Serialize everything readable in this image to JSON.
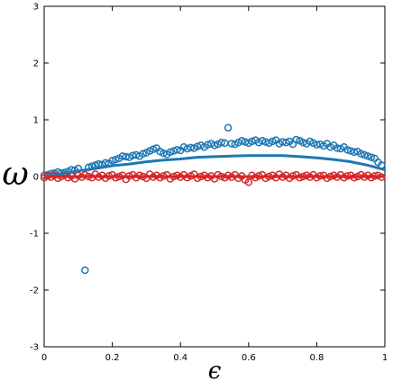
{
  "chart_data": {
    "type": "scatter",
    "xlabel": "ϵ",
    "ylabel": "ω",
    "xlim": [
      0,
      1
    ],
    "ylim": [
      -3,
      3
    ],
    "x_ticks": [
      "0",
      "0.2",
      "0.4",
      "0.6",
      "0.8",
      "1"
    ],
    "y_ticks": [
      "3",
      "2",
      "1",
      "0",
      "-1",
      "-2",
      "-3"
    ],
    "x_tick_values": [
      0,
      0.2,
      0.4,
      0.6,
      0.8,
      1
    ],
    "y_tick_values": [
      3,
      2,
      1,
      0,
      -1,
      -2,
      -3
    ],
    "grid": false,
    "colors": {
      "blue": "#1f77b4",
      "red": "#d62728"
    },
    "series": [
      {
        "kind": "scatter",
        "color": "blue",
        "points": [
          [
            0.0,
            0.02
          ],
          [
            0.01,
            0.03
          ],
          [
            0.02,
            0.05
          ],
          [
            0.03,
            0.06
          ],
          [
            0.04,
            0.08
          ],
          [
            0.05,
            0.06
          ],
          [
            0.06,
            0.07
          ],
          [
            0.07,
            0.09
          ],
          [
            0.08,
            0.12
          ],
          [
            0.09,
            0.11
          ],
          [
            0.1,
            0.14
          ],
          [
            0.12,
            -1.65
          ],
          [
            0.13,
            0.16
          ],
          [
            0.14,
            0.18
          ],
          [
            0.15,
            0.2
          ],
          [
            0.16,
            0.22
          ],
          [
            0.17,
            0.21
          ],
          [
            0.18,
            0.24
          ],
          [
            0.19,
            0.23
          ],
          [
            0.2,
            0.28
          ],
          [
            0.21,
            0.3
          ],
          [
            0.22,
            0.32
          ],
          [
            0.23,
            0.36
          ],
          [
            0.24,
            0.35
          ],
          [
            0.25,
            0.34
          ],
          [
            0.26,
            0.37
          ],
          [
            0.27,
            0.38
          ],
          [
            0.28,
            0.36
          ],
          [
            0.29,
            0.4
          ],
          [
            0.3,
            0.42
          ],
          [
            0.31,
            0.45
          ],
          [
            0.32,
            0.48
          ],
          [
            0.33,
            0.5
          ],
          [
            0.34,
            0.44
          ],
          [
            0.35,
            0.41
          ],
          [
            0.36,
            0.39
          ],
          [
            0.37,
            0.43
          ],
          [
            0.38,
            0.45
          ],
          [
            0.39,
            0.47
          ],
          [
            0.4,
            0.46
          ],
          [
            0.41,
            0.52
          ],
          [
            0.42,
            0.49
          ],
          [
            0.43,
            0.51
          ],
          [
            0.44,
            0.5
          ],
          [
            0.45,
            0.53
          ],
          [
            0.46,
            0.55
          ],
          [
            0.47,
            0.52
          ],
          [
            0.48,
            0.56
          ],
          [
            0.49,
            0.58
          ],
          [
            0.5,
            0.55
          ],
          [
            0.51,
            0.57
          ],
          [
            0.52,
            0.6
          ],
          [
            0.53,
            0.59
          ],
          [
            0.54,
            0.86
          ],
          [
            0.55,
            0.58
          ],
          [
            0.56,
            0.57
          ],
          [
            0.57,
            0.6
          ],
          [
            0.58,
            0.63
          ],
          [
            0.59,
            0.61
          ],
          [
            0.6,
            0.59
          ],
          [
            0.61,
            0.62
          ],
          [
            0.62,
            0.64
          ],
          [
            0.63,
            0.6
          ],
          [
            0.64,
            0.63
          ],
          [
            0.65,
            0.61
          ],
          [
            0.66,
            0.59
          ],
          [
            0.67,
            0.62
          ],
          [
            0.68,
            0.64
          ],
          [
            0.69,
            0.58
          ],
          [
            0.7,
            0.61
          ],
          [
            0.71,
            0.6
          ],
          [
            0.72,
            0.62
          ],
          [
            0.73,
            0.57
          ],
          [
            0.74,
            0.65
          ],
          [
            0.75,
            0.63
          ],
          [
            0.76,
            0.6
          ],
          [
            0.77,
            0.58
          ],
          [
            0.78,
            0.62
          ],
          [
            0.79,
            0.59
          ],
          [
            0.8,
            0.56
          ],
          [
            0.81,
            0.57
          ],
          [
            0.82,
            0.54
          ],
          [
            0.83,
            0.58
          ],
          [
            0.84,
            0.52
          ],
          [
            0.85,
            0.55
          ],
          [
            0.86,
            0.5
          ],
          [
            0.87,
            0.49
          ],
          [
            0.88,
            0.52
          ],
          [
            0.89,
            0.47
          ],
          [
            0.9,
            0.45
          ],
          [
            0.91,
            0.43
          ],
          [
            0.92,
            0.44
          ],
          [
            0.93,
            0.4
          ],
          [
            0.94,
            0.38
          ],
          [
            0.95,
            0.36
          ],
          [
            0.96,
            0.34
          ],
          [
            0.97,
            0.32
          ],
          [
            0.98,
            0.25
          ],
          [
            0.99,
            0.2
          ]
        ]
      },
      {
        "kind": "scatter",
        "color": "red",
        "points": [
          [
            0.0,
            -0.02
          ],
          [
            0.01,
            0.01
          ],
          [
            0.02,
            -0.01
          ],
          [
            0.03,
            0.02
          ],
          [
            0.04,
            -0.03
          ],
          [
            0.05,
            0.0
          ],
          [
            0.06,
            0.03
          ],
          [
            0.07,
            -0.02
          ],
          [
            0.08,
            0.01
          ],
          [
            0.09,
            -0.04
          ],
          [
            0.1,
            0.02
          ],
          [
            0.11,
            -0.01
          ],
          [
            0.12,
            0.03
          ],
          [
            0.13,
            0.0
          ],
          [
            0.14,
            -0.02
          ],
          [
            0.15,
            0.04
          ],
          [
            0.16,
            -0.01
          ],
          [
            0.17,
            0.02
          ],
          [
            0.18,
            -0.03
          ],
          [
            0.19,
            0.01
          ],
          [
            0.2,
            0.03
          ],
          [
            0.21,
            -0.02
          ],
          [
            0.22,
            0.0
          ],
          [
            0.23,
            0.02
          ],
          [
            0.24,
            -0.05
          ],
          [
            0.25,
            0.01
          ],
          [
            0.26,
            0.03
          ],
          [
            0.27,
            -0.02
          ],
          [
            0.28,
            0.02
          ],
          [
            0.29,
            0.0
          ],
          [
            0.3,
            -0.03
          ],
          [
            0.31,
            0.04
          ],
          [
            0.32,
            -0.01
          ],
          [
            0.33,
            0.02
          ],
          [
            0.34,
            -0.02
          ],
          [
            0.35,
            0.01
          ],
          [
            0.36,
            0.03
          ],
          [
            0.37,
            -0.04
          ],
          [
            0.38,
            0.0
          ],
          [
            0.39,
            0.02
          ],
          [
            0.4,
            -0.01
          ],
          [
            0.41,
            0.03
          ],
          [
            0.42,
            -0.02
          ],
          [
            0.43,
            0.01
          ],
          [
            0.44,
            0.04
          ],
          [
            0.45,
            -0.03
          ],
          [
            0.46,
            0.0
          ],
          [
            0.47,
            0.02
          ],
          [
            0.48,
            -0.02
          ],
          [
            0.49,
            0.01
          ],
          [
            0.5,
            -0.04
          ],
          [
            0.51,
            0.03
          ],
          [
            0.52,
            0.0
          ],
          [
            0.53,
            -0.02
          ],
          [
            0.54,
            0.02
          ],
          [
            0.55,
            -0.01
          ],
          [
            0.56,
            0.03
          ],
          [
            0.57,
            -0.03
          ],
          [
            0.58,
            0.01
          ],
          [
            0.59,
            -0.06
          ],
          [
            0.6,
            -0.1
          ],
          [
            0.61,
            0.02
          ],
          [
            0.62,
            -0.02
          ],
          [
            0.63,
            0.01
          ],
          [
            0.64,
            0.03
          ],
          [
            0.65,
            -0.03
          ],
          [
            0.66,
            0.0
          ],
          [
            0.67,
            0.02
          ],
          [
            0.68,
            -0.02
          ],
          [
            0.69,
            0.04
          ],
          [
            0.7,
            -0.01
          ],
          [
            0.71,
            0.02
          ],
          [
            0.72,
            -0.03
          ],
          [
            0.73,
            0.01
          ],
          [
            0.74,
            0.03
          ],
          [
            0.75,
            -0.02
          ],
          [
            0.76,
            0.0
          ],
          [
            0.77,
            0.02
          ],
          [
            0.78,
            -0.01
          ],
          [
            0.79,
            0.03
          ],
          [
            0.8,
            -0.02
          ],
          [
            0.81,
            0.01
          ],
          [
            0.82,
            0.02
          ],
          [
            0.83,
            -0.03
          ],
          [
            0.84,
            0.0
          ],
          [
            0.85,
            0.02
          ],
          [
            0.86,
            -0.01
          ],
          [
            0.87,
            0.03
          ],
          [
            0.88,
            -0.02
          ],
          [
            0.89,
            0.01
          ],
          [
            0.9,
            0.02
          ],
          [
            0.91,
            -0.02
          ],
          [
            0.92,
            0.0
          ],
          [
            0.93,
            0.03
          ],
          [
            0.94,
            -0.01
          ],
          [
            0.95,
            0.02
          ],
          [
            0.96,
            -0.02
          ],
          [
            0.97,
            0.01
          ],
          [
            0.98,
            0.02
          ],
          [
            0.99,
            -0.01
          ]
        ]
      },
      {
        "kind": "line",
        "color": "blue",
        "points": [
          [
            0.0,
            0.0
          ],
          [
            0.05,
            0.05
          ],
          [
            0.1,
            0.1
          ],
          [
            0.15,
            0.14
          ],
          [
            0.2,
            0.19
          ],
          [
            0.25,
            0.22
          ],
          [
            0.3,
            0.26
          ],
          [
            0.35,
            0.29
          ],
          [
            0.4,
            0.31
          ],
          [
            0.45,
            0.34
          ],
          [
            0.5,
            0.35
          ],
          [
            0.55,
            0.36
          ],
          [
            0.6,
            0.37
          ],
          [
            0.65,
            0.37
          ],
          [
            0.7,
            0.37
          ],
          [
            0.75,
            0.35
          ],
          [
            0.8,
            0.33
          ],
          [
            0.85,
            0.3
          ],
          [
            0.9,
            0.26
          ],
          [
            0.95,
            0.2
          ],
          [
            0.98,
            0.15
          ],
          [
            1.0,
            0.12
          ]
        ]
      },
      {
        "kind": "line",
        "color": "red",
        "points": [
          [
            0.0,
            0.0
          ],
          [
            1.0,
            0.0
          ]
        ]
      }
    ]
  }
}
